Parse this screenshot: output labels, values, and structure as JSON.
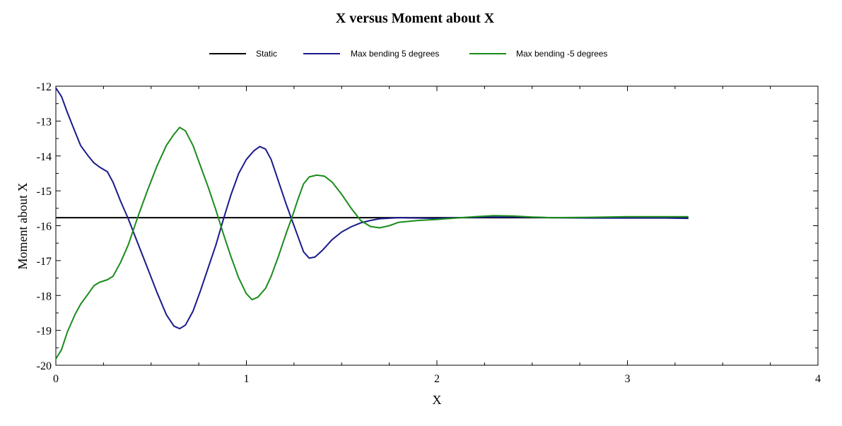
{
  "chart_data": {
    "type": "line",
    "title": "X   versus   Moment about X",
    "xlabel": "X",
    "ylabel": "Moment about X",
    "xlim": [
      0,
      4
    ],
    "ylim": [
      -20,
      -12
    ],
    "xticks": [
      0,
      1,
      2,
      3,
      4
    ],
    "yticks": [
      -12,
      -13,
      -14,
      -15,
      -16,
      -17,
      -18,
      -19,
      -20
    ],
    "grid": false,
    "legend_position": "top-center",
    "series": [
      {
        "name": "Static",
        "color": "#000000",
        "points": [
          [
            0,
            -15.77
          ],
          [
            3.32,
            -15.77
          ]
        ]
      },
      {
        "name": "Max bending 5 degrees",
        "color": "#1a1a8c",
        "points": [
          [
            0,
            -12.05
          ],
          [
            0.03,
            -12.3
          ],
          [
            0.06,
            -12.75
          ],
          [
            0.1,
            -13.3
          ],
          [
            0.13,
            -13.7
          ],
          [
            0.17,
            -14.0
          ],
          [
            0.2,
            -14.2
          ],
          [
            0.23,
            -14.32
          ],
          [
            0.27,
            -14.45
          ],
          [
            0.3,
            -14.75
          ],
          [
            0.34,
            -15.3
          ],
          [
            0.38,
            -15.8
          ],
          [
            0.43,
            -16.5
          ],
          [
            0.48,
            -17.2
          ],
          [
            0.53,
            -17.9
          ],
          [
            0.58,
            -18.55
          ],
          [
            0.62,
            -18.88
          ],
          [
            0.65,
            -18.95
          ],
          [
            0.68,
            -18.85
          ],
          [
            0.72,
            -18.45
          ],
          [
            0.76,
            -17.85
          ],
          [
            0.8,
            -17.2
          ],
          [
            0.84,
            -16.55
          ],
          [
            0.88,
            -15.8
          ],
          [
            0.92,
            -15.1
          ],
          [
            0.96,
            -14.5
          ],
          [
            1.0,
            -14.1
          ],
          [
            1.04,
            -13.85
          ],
          [
            1.07,
            -13.73
          ],
          [
            1.1,
            -13.8
          ],
          [
            1.13,
            -14.1
          ],
          [
            1.17,
            -14.75
          ],
          [
            1.21,
            -15.4
          ],
          [
            1.24,
            -15.85
          ],
          [
            1.27,
            -16.3
          ],
          [
            1.3,
            -16.75
          ],
          [
            1.33,
            -16.93
          ],
          [
            1.36,
            -16.9
          ],
          [
            1.4,
            -16.7
          ],
          [
            1.45,
            -16.4
          ],
          [
            1.5,
            -16.18
          ],
          [
            1.55,
            -16.03
          ],
          [
            1.6,
            -15.92
          ],
          [
            1.65,
            -15.85
          ],
          [
            1.7,
            -15.8
          ],
          [
            1.8,
            -15.77
          ],
          [
            1.9,
            -15.78
          ],
          [
            2.0,
            -15.79
          ],
          [
            2.1,
            -15.77
          ],
          [
            2.2,
            -15.76
          ],
          [
            2.3,
            -15.75
          ],
          [
            2.4,
            -15.75
          ],
          [
            2.5,
            -15.76
          ],
          [
            2.6,
            -15.77
          ],
          [
            2.8,
            -15.78
          ],
          [
            3.0,
            -15.78
          ],
          [
            3.2,
            -15.78
          ],
          [
            3.32,
            -15.79
          ]
        ]
      },
      {
        "name": "Max bending -5 degrees",
        "color": "#1a8c1a",
        "points": [
          [
            0,
            -19.82
          ],
          [
            0.03,
            -19.55
          ],
          [
            0.06,
            -19.05
          ],
          [
            0.1,
            -18.55
          ],
          [
            0.13,
            -18.25
          ],
          [
            0.17,
            -17.95
          ],
          [
            0.2,
            -17.72
          ],
          [
            0.23,
            -17.62
          ],
          [
            0.27,
            -17.55
          ],
          [
            0.3,
            -17.45
          ],
          [
            0.34,
            -17.05
          ],
          [
            0.38,
            -16.55
          ],
          [
            0.43,
            -15.75
          ],
          [
            0.48,
            -15.0
          ],
          [
            0.53,
            -14.3
          ],
          [
            0.58,
            -13.7
          ],
          [
            0.62,
            -13.38
          ],
          [
            0.65,
            -13.18
          ],
          [
            0.68,
            -13.28
          ],
          [
            0.72,
            -13.7
          ],
          [
            0.76,
            -14.3
          ],
          [
            0.8,
            -14.9
          ],
          [
            0.84,
            -15.55
          ],
          [
            0.88,
            -16.25
          ],
          [
            0.92,
            -16.9
          ],
          [
            0.96,
            -17.5
          ],
          [
            1.0,
            -17.95
          ],
          [
            1.03,
            -18.12
          ],
          [
            1.06,
            -18.05
          ],
          [
            1.1,
            -17.8
          ],
          [
            1.13,
            -17.45
          ],
          [
            1.17,
            -16.85
          ],
          [
            1.21,
            -16.2
          ],
          [
            1.24,
            -15.75
          ],
          [
            1.27,
            -15.25
          ],
          [
            1.3,
            -14.8
          ],
          [
            1.33,
            -14.6
          ],
          [
            1.37,
            -14.55
          ],
          [
            1.41,
            -14.58
          ],
          [
            1.45,
            -14.75
          ],
          [
            1.5,
            -15.1
          ],
          [
            1.55,
            -15.5
          ],
          [
            1.6,
            -15.85
          ],
          [
            1.65,
            -16.02
          ],
          [
            1.7,
            -16.06
          ],
          [
            1.75,
            -16.0
          ],
          [
            1.8,
            -15.9
          ],
          [
            1.9,
            -15.85
          ],
          [
            2.0,
            -15.82
          ],
          [
            2.1,
            -15.78
          ],
          [
            2.2,
            -15.74
          ],
          [
            2.3,
            -15.71
          ],
          [
            2.4,
            -15.72
          ],
          [
            2.5,
            -15.75
          ],
          [
            2.6,
            -15.77
          ],
          [
            2.8,
            -15.76
          ],
          [
            3.0,
            -15.74
          ],
          [
            3.2,
            -15.74
          ],
          [
            3.32,
            -15.74
          ]
        ]
      }
    ]
  }
}
